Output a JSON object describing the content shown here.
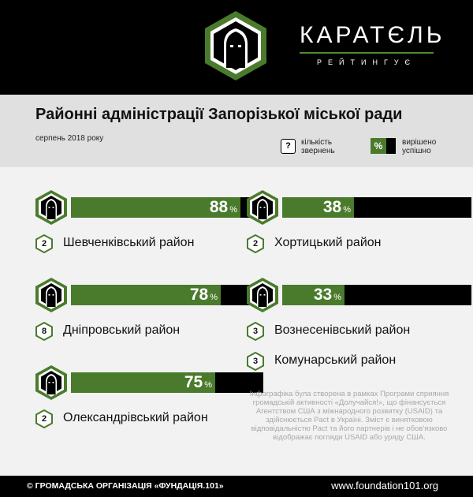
{
  "header": {
    "brand_title": "КАРАТЄЛЬ",
    "brand_subtitle": "РЕЙТИНГУЄ"
  },
  "title": "Районні адміністрації Запорізької міської ради",
  "date": "серпень 2018 року",
  "legend": {
    "count_symbol": "?",
    "count_label": "кількість звернень",
    "percent_symbol": "%",
    "percent_label": "вирішено успішно"
  },
  "colors": {
    "accent": "#4a7b2c",
    "dark": "#000000",
    "band": "#e0e0e0"
  },
  "chart_data": {
    "type": "bar",
    "title": "Районні адміністрації Запорізької міської ради",
    "subtitle": "серпень 2018 року",
    "unit": "%",
    "ylim": [
      0,
      100
    ],
    "series": [
      {
        "name": "вирішено успішно",
        "values": [
          88,
          78,
          75,
          38,
          33
        ]
      },
      {
        "name": "кількість звернень",
        "values": [
          2,
          8,
          2,
          2,
          3
        ]
      }
    ],
    "categories": [
      "Шевченківський район",
      "Дніпровський район",
      "Олександрівський район",
      "Хортицький район",
      "Вознесенівський район"
    ],
    "districts": [
      {
        "name": "Шевченківський район",
        "percent": 88,
        "requests": 2
      },
      {
        "name": "Дніпровський район",
        "percent": 78,
        "requests": 8
      },
      {
        "name": "Олександрівський район",
        "percent": 75,
        "requests": 2
      },
      {
        "name": "Хортицький район",
        "percent": 38,
        "requests": 2
      },
      {
        "name": "Вознесенівський район",
        "percent": 33,
        "requests": 3
      }
    ],
    "no_rating": [
      {
        "name": "Комунарський район",
        "requests": 3
      }
    ]
  },
  "disclaimer": "Інфографіка була створена в рамках Програми сприяння громадській активності «Долучайся!», що фінансується Агентством США з міжнародного розвитку (USAID) та здійснюється Pact в Україні. Зміст є винятковою відповідальністю Pact та його партнерів і не обов'язково відображає погляди USAID або уряду США.",
  "footer": {
    "left": "© ГРОМАДСЬКА ОРГАНІЗАЦІЯ «ФУНДАЦІЯ.101»",
    "right": "www.foundation101.org"
  }
}
